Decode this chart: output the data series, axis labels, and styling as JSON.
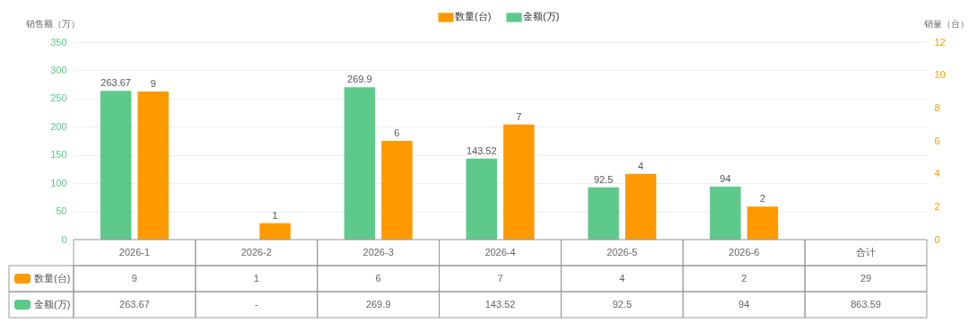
{
  "chart_data": {
    "type": "bar",
    "ylabel": "销售额（万）",
    "y2label": "销量（台）",
    "categories": [
      "2026-1",
      "2026-2",
      "2026-3",
      "2026-4",
      "2026-5",
      "2026-6",
      "合计"
    ],
    "series": [
      {
        "name": "数量(台)",
        "color": "#ff9900",
        "axis": "y2",
        "values": [
          9,
          1,
          6,
          7,
          4,
          2,
          null
        ],
        "value_labels": [
          "9",
          "1",
          "6",
          "7",
          "4",
          "2",
          "29"
        ]
      },
      {
        "name": "金额(万)",
        "color": "#5dc98a",
        "values": [
          263.67,
          null,
          269.9,
          143.52,
          92.5,
          94,
          null
        ],
        "value_labels": [
          "263.67",
          "-",
          "269.9",
          "143.52",
          "92.5",
          "94",
          "863.59"
        ]
      }
    ],
    "ylim": [
      0,
      350
    ],
    "yticks": [
      0,
      50,
      100,
      150,
      200,
      250,
      300,
      350
    ],
    "y2lim": [
      0,
      12
    ],
    "y2ticks": [
      0,
      2,
      4,
      6,
      8,
      10,
      12
    ],
    "grid": true,
    "legend": "top"
  }
}
